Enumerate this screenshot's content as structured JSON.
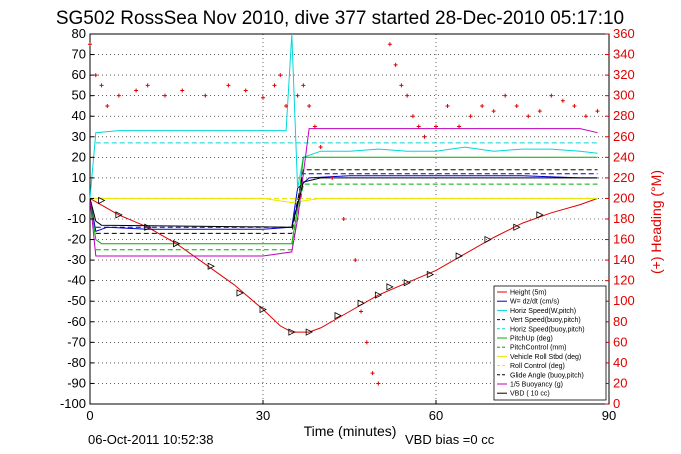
{
  "chart_data": {
    "type": "line",
    "title": "SG502 RossSea Nov 2010, dive 377 started 28-Dec-2010 05:17:10",
    "xlabel": "Time (minutes)",
    "ylabel_right": "(+) Heading (°M)",
    "xlim": [
      0,
      90
    ],
    "ylim": [
      -100,
      80
    ],
    "ylim_right": [
      0,
      360
    ],
    "xticks": [
      0,
      30,
      60,
      90
    ],
    "yticks": [
      80,
      70,
      60,
      50,
      40,
      30,
      20,
      10,
      0,
      -10,
      -20,
      -30,
      -40,
      -50,
      -60,
      -70,
      -80,
      -90,
      -100
    ],
    "yticks_right": [
      360,
      340,
      320,
      300,
      280,
      260,
      240,
      220,
      200,
      180,
      160,
      140,
      120,
      100,
      80,
      60,
      40,
      20,
      0
    ],
    "grid": true,
    "legend_position": "bottom-right",
    "footer_date": "06-Oct-2011 10:52:38",
    "footer_note": "VBD bias =0 cc",
    "legend": [
      {
        "label": "Height (5m)",
        "color": "#e00000",
        "style": "solid"
      },
      {
        "label": "W= dz/dt (cm/s)",
        "color": "#0000cc",
        "style": "solid"
      },
      {
        "label": "Horiz Speed(W,pitch)",
        "color": "#00d8d8",
        "style": "solid"
      },
      {
        "label": "Vert Speed(buoy,pitch)",
        "color": "#0000cc",
        "style": "dashed"
      },
      {
        "label": "Horiz Speed(buoy,pitch)",
        "color": "#00d8d8",
        "style": "dashed"
      },
      {
        "label": "PitchUp (deg)",
        "color": "#00b000",
        "style": "solid"
      },
      {
        "label": "PitchControl (mm)",
        "color": "#00b000",
        "style": "dashed"
      },
      {
        "label": "Vehicle Roll Stbd (deg)",
        "color": "#e8e800",
        "style": "solid"
      },
      {
        "label": "Roll Control (deg)",
        "color": "#e8e800",
        "style": "dashed"
      },
      {
        "label": "Glide Angle (buoy,pitch)",
        "color": "#000000",
        "style": "dashed"
      },
      {
        "label": "1/5 Buoyancy (g)",
        "color": "#c000c0",
        "style": "solid"
      },
      {
        "label": "VBD ( 10 cc)",
        "color": "#000000",
        "style": "solid"
      }
    ],
    "series": [
      {
        "name": "Height (5m)",
        "color": "#e00000",
        "points": [
          [
            0,
            0
          ],
          [
            5,
            -8
          ],
          [
            10,
            -14
          ],
          [
            15,
            -22
          ],
          [
            20,
            -32
          ],
          [
            25,
            -42
          ],
          [
            30,
            -54
          ],
          [
            33,
            -62
          ],
          [
            35,
            -65
          ],
          [
            38,
            -65
          ],
          [
            40,
            -63
          ],
          [
            45,
            -55
          ],
          [
            50,
            -47
          ],
          [
            55,
            -41
          ],
          [
            60,
            -35
          ],
          [
            65,
            -27
          ],
          [
            70,
            -19
          ],
          [
            75,
            -12
          ],
          [
            80,
            -7
          ],
          [
            85,
            -3
          ],
          [
            88,
            0
          ]
        ],
        "markers": [
          [
            2,
            -1
          ],
          [
            5,
            -8
          ],
          [
            10,
            -14
          ],
          [
            15,
            -22
          ],
          [
            21,
            -33
          ],
          [
            26,
            -46
          ],
          [
            30,
            -54
          ],
          [
            35,
            -65
          ],
          [
            38,
            -65
          ],
          [
            43,
            -57
          ],
          [
            47,
            -51
          ],
          [
            50,
            -47
          ],
          [
            52,
            -43
          ],
          [
            55,
            -41
          ],
          [
            59,
            -37
          ],
          [
            64,
            -28
          ],
          [
            69,
            -20
          ],
          [
            74,
            -14
          ],
          [
            78,
            -8
          ]
        ]
      },
      {
        "name": "W= dz/dt (cm/s)",
        "color": "#0000cc",
        "points": [
          [
            0,
            0
          ],
          [
            1,
            -16
          ],
          [
            3,
            -14
          ],
          [
            10,
            -15
          ],
          [
            20,
            -15
          ],
          [
            30,
            -15
          ],
          [
            35,
            -14
          ],
          [
            36,
            5
          ],
          [
            38,
            10
          ],
          [
            45,
            11
          ],
          [
            55,
            11
          ],
          [
            65,
            11
          ],
          [
            75,
            11
          ],
          [
            85,
            10
          ],
          [
            88,
            10
          ]
        ]
      },
      {
        "name": "Horiz Speed(W,pitch)",
        "color": "#00d8d8",
        "points": [
          [
            0,
            0
          ],
          [
            1,
            32
          ],
          [
            5,
            33
          ],
          [
            10,
            33
          ],
          [
            15,
            33
          ],
          [
            20,
            33
          ],
          [
            25,
            33
          ],
          [
            30,
            33
          ],
          [
            34,
            33
          ],
          [
            35,
            80
          ],
          [
            36,
            5
          ],
          [
            37,
            20
          ],
          [
            40,
            23
          ],
          [
            45,
            23
          ],
          [
            50,
            24
          ],
          [
            55,
            23
          ],
          [
            60,
            23
          ],
          [
            65,
            25
          ],
          [
            70,
            23
          ],
          [
            75,
            24
          ],
          [
            80,
            24
          ],
          [
            85,
            23
          ],
          [
            88,
            22
          ]
        ]
      },
      {
        "name": "Vert Speed(buoy,pitch)",
        "color": "#0000cc",
        "dashed": true,
        "points": [
          [
            1,
            -14
          ],
          [
            35,
            -14
          ],
          [
            37,
            12
          ],
          [
            88,
            12
          ]
        ]
      },
      {
        "name": "Horiz Speed(buoy,pitch)",
        "color": "#00d8d8",
        "dashed": true,
        "points": [
          [
            1,
            27
          ],
          [
            35,
            27
          ],
          [
            37,
            27
          ],
          [
            88,
            27
          ]
        ]
      },
      {
        "name": "PitchUp (deg)",
        "color": "#00b000",
        "points": [
          [
            0,
            0
          ],
          [
            1,
            -20
          ],
          [
            2,
            -22
          ],
          [
            10,
            -22
          ],
          [
            20,
            -22
          ],
          [
            30,
            -22
          ],
          [
            35,
            -22
          ],
          [
            36,
            -5
          ],
          [
            37,
            20
          ],
          [
            45,
            20
          ],
          [
            55,
            20
          ],
          [
            65,
            20
          ],
          [
            75,
            20
          ],
          [
            85,
            20
          ],
          [
            88,
            20
          ]
        ]
      },
      {
        "name": "PitchControl (mm)",
        "color": "#00b000",
        "dashed": true,
        "points": [
          [
            1,
            -25
          ],
          [
            35,
            -25
          ],
          [
            37,
            7
          ],
          [
            88,
            7
          ]
        ]
      },
      {
        "name": "Vehicle Roll Stbd (deg)",
        "color": "#e8e800",
        "points": [
          [
            0,
            0
          ],
          [
            5,
            0
          ],
          [
            10,
            0
          ],
          [
            15,
            0
          ],
          [
            20,
            0
          ],
          [
            25,
            0
          ],
          [
            30,
            0
          ],
          [
            35,
            -2
          ],
          [
            40,
            0
          ],
          [
            45,
            0
          ],
          [
            50,
            0
          ],
          [
            55,
            0
          ],
          [
            60,
            0
          ],
          [
            65,
            0
          ],
          [
            70,
            0
          ],
          [
            75,
            0
          ],
          [
            80,
            0
          ],
          [
            85,
            0
          ],
          [
            88,
            0
          ]
        ]
      },
      {
        "name": "Roll Control (deg)",
        "color": "#e8e800",
        "dashed": true,
        "points": [
          [
            0,
            0
          ],
          [
            88,
            0
          ]
        ]
      },
      {
        "name": "Glide Angle (buoy,pitch)",
        "color": "#000000",
        "dashed": true,
        "points": [
          [
            1,
            -17
          ],
          [
            35,
            -17
          ],
          [
            37,
            14
          ],
          [
            88,
            14
          ]
        ]
      },
      {
        "name": "1/5 Buoyancy (g)",
        "color": "#c000c0",
        "points": [
          [
            0,
            0
          ],
          [
            1,
            -28
          ],
          [
            10,
            -28
          ],
          [
            20,
            -28
          ],
          [
            30,
            -28
          ],
          [
            35,
            -26
          ],
          [
            36,
            -10
          ],
          [
            38,
            34
          ],
          [
            45,
            34
          ],
          [
            55,
            34
          ],
          [
            65,
            34
          ],
          [
            75,
            34
          ],
          [
            85,
            34
          ],
          [
            88,
            32
          ]
        ]
      },
      {
        "name": "VBD ( 10 cc)",
        "color": "#000000",
        "points": [
          [
            0,
            0
          ],
          [
            1,
            -11
          ],
          [
            2,
            -13
          ],
          [
            35,
            -14
          ],
          [
            37,
            8
          ],
          [
            40,
            10
          ],
          [
            88,
            10
          ]
        ]
      },
      {
        "name": "(+) Heading (°M)",
        "color": "#e00000",
        "axis": "right",
        "markers_only": true,
        "points": [
          [
            0,
            350
          ],
          [
            1,
            320
          ],
          [
            2,
            310
          ],
          [
            3,
            290
          ],
          [
            5,
            300
          ],
          [
            8,
            305
          ],
          [
            10,
            310
          ],
          [
            13,
            300
          ],
          [
            16,
            305
          ],
          [
            20,
            300
          ],
          [
            24,
            310
          ],
          [
            27,
            305
          ],
          [
            30,
            298
          ],
          [
            32,
            310
          ],
          [
            33,
            320
          ],
          [
            34,
            290
          ],
          [
            36,
            300
          ],
          [
            37,
            310
          ],
          [
            38,
            290
          ],
          [
            39,
            270
          ],
          [
            40,
            250
          ],
          [
            42,
            220
          ],
          [
            44,
            180
          ],
          [
            46,
            140
          ],
          [
            47,
            90
          ],
          [
            48,
            60
          ],
          [
            49,
            30
          ],
          [
            50,
            20
          ],
          [
            52,
            350
          ],
          [
            53,
            330
          ],
          [
            54,
            310
          ],
          [
            55,
            300
          ],
          [
            56,
            280
          ],
          [
            57,
            270
          ],
          [
            58,
            260
          ],
          [
            60,
            270
          ],
          [
            62,
            290
          ],
          [
            64,
            270
          ],
          [
            66,
            280
          ],
          [
            68,
            290
          ],
          [
            70,
            285
          ],
          [
            72,
            300
          ],
          [
            74,
            290
          ],
          [
            76,
            280
          ],
          [
            78,
            285
          ],
          [
            80,
            300
          ],
          [
            82,
            295
          ],
          [
            84,
            290
          ],
          [
            86,
            280
          ],
          [
            88,
            285
          ]
        ]
      }
    ]
  }
}
